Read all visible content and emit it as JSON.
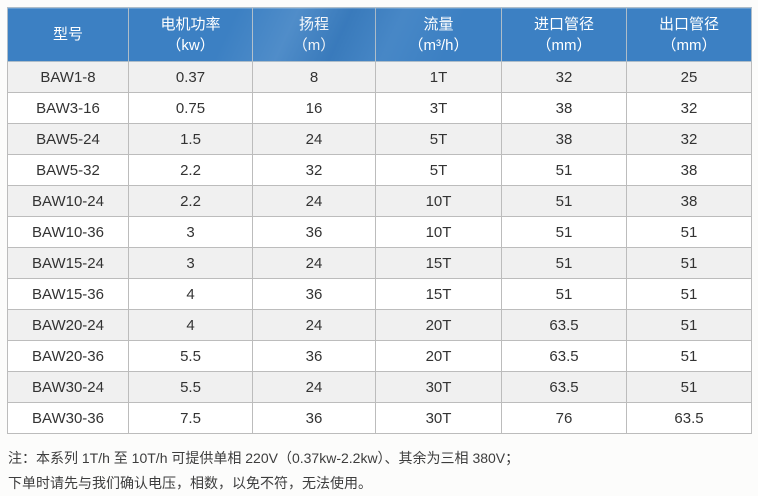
{
  "table": {
    "headers": [
      {
        "label": "型号",
        "unit": ""
      },
      {
        "label": "电机功率",
        "unit": "（kw）"
      },
      {
        "label": "扬程",
        "unit": "（m）"
      },
      {
        "label": "流量",
        "unit": "（m³/h）"
      },
      {
        "label": "进口管径",
        "unit": "（mm）"
      },
      {
        "label": "出口管径",
        "unit": "（mm）"
      }
    ],
    "rows": [
      [
        "BAW1-8",
        "0.37",
        "8",
        "1T",
        "32",
        "25"
      ],
      [
        "BAW3-16",
        "0.75",
        "16",
        "3T",
        "38",
        "32"
      ],
      [
        "BAW5-24",
        "1.5",
        "24",
        "5T",
        "38",
        "32"
      ],
      [
        "BAW5-32",
        "2.2",
        "32",
        "5T",
        "51",
        "38"
      ],
      [
        "BAW10-24",
        "2.2",
        "24",
        "10T",
        "51",
        "38"
      ],
      [
        "BAW10-36",
        "3",
        "36",
        "10T",
        "51",
        "51"
      ],
      [
        "BAW15-24",
        "3",
        "24",
        "15T",
        "51",
        "51"
      ],
      [
        "BAW15-36",
        "4",
        "36",
        "15T",
        "51",
        "51"
      ],
      [
        "BAW20-24",
        "4",
        "24",
        "20T",
        "63.5",
        "51"
      ],
      [
        "BAW20-36",
        "5.5",
        "36",
        "20T",
        "63.5",
        "51"
      ],
      [
        "BAW30-24",
        "5.5",
        "24",
        "30T",
        "63.5",
        "51"
      ],
      [
        "BAW30-36",
        "7.5",
        "36",
        "30T",
        "76",
        "63.5"
      ]
    ]
  },
  "note": {
    "line1": "注：本系列 1T/h 至 10T/h 可提供单相 220V（0.37kw-2.2kw）、其余为三相 380V；",
    "line2": "下单时请先与我们确认电压，相数，以免不符，无法使用。"
  },
  "colors": {
    "header_bg": "#3c80c3",
    "header_text": "#ffffff",
    "row_alt_bg": "#f0f0f0",
    "row_bg": "#ffffff",
    "grid_line": "#bcbcbc",
    "body_text": "#333333"
  }
}
